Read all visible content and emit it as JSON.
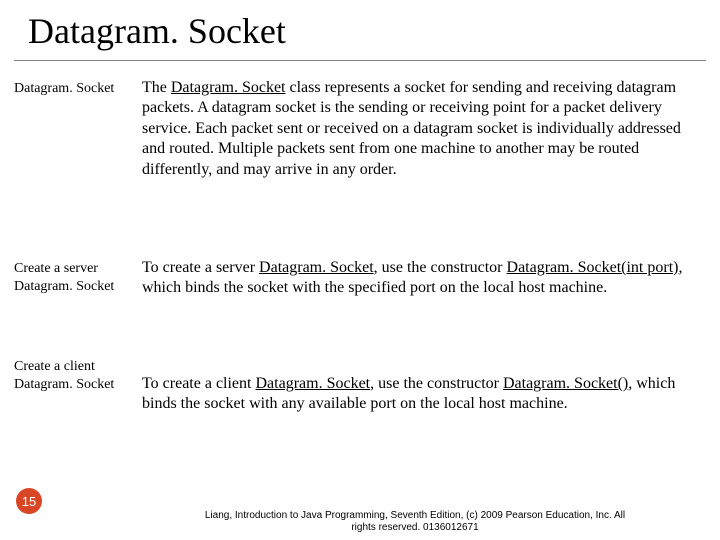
{
  "title": "Datagram. Socket",
  "sections": [
    {
      "label": "Datagram. Socket",
      "body_pre": "The ",
      "body_u1": "Datagram. Socket",
      "body_post": " class represents a socket for sending and receiving datagram packets. A datagram socket is the sending or receiving point for a packet delivery service. Each packet sent or received on a datagram socket is individually addressed and routed. Multiple packets sent from one machine to another may be routed differently, and may arrive in any order."
    },
    {
      "label_l1": "Create a server",
      "label_l2": "Datagram. Socket",
      "body_pre": "To create a server ",
      "body_u1": "Datagram. Socket",
      "body_mid": ", use the constructor ",
      "body_u2": "Datagram. Socket(int port)",
      "body_post": ", which binds the socket with the specified port on the local host machine."
    },
    {
      "label_l1": "Create a client",
      "label_l2": "Datagram. Socket",
      "body_pre": "To create a client ",
      "body_u1": "Datagram. Socket",
      "body_mid": ", use the constructor ",
      "body_u2": "Datagram. Socket()",
      "body_post": ", which binds the socket with any available port on the local host machine."
    }
  ],
  "page_number": "15",
  "footer_l1": "Liang, Introduction to Java Programming, Seventh Edition, (c) 2009 Pearson Education, Inc. All",
  "footer_l2": "rights reserved. 0136012671",
  "colors": {
    "accent": "#d94626",
    "rule": "#808080",
    "text": "#000000",
    "bg": "#ffffff"
  }
}
